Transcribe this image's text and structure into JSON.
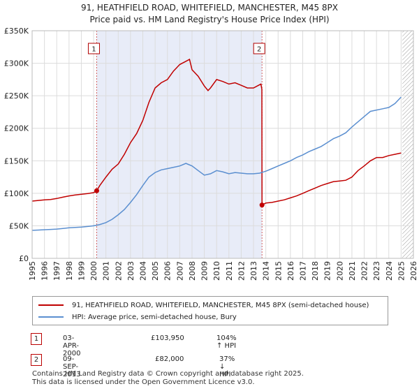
{
  "chart_data": {
    "type": "line",
    "title": "91, HEATHFIELD ROAD, WHITEFIELD, MANCHESTER, M45 8PX",
    "subtitle": "Price paid vs. HM Land Registry's House Price Index (HPI)",
    "xlim": [
      1995,
      2026
    ],
    "ylim": [
      0,
      350000
    ],
    "x_ticks": [
      "1995",
      "1996",
      "1997",
      "1998",
      "1999",
      "2000",
      "2001",
      "2002",
      "2003",
      "2004",
      "2005",
      "2006",
      "2007",
      "2008",
      "2009",
      "2010",
      "2011",
      "2012",
      "2013",
      "2014",
      "2015",
      "2016",
      "2017",
      "2018",
      "2019",
      "2020",
      "2021",
      "2022",
      "2023",
      "2024",
      "2025",
      "2026"
    ],
    "y_ticks": [
      {
        "value": 0,
        "label": "£0"
      },
      {
        "value": 50000,
        "label": "£50K"
      },
      {
        "value": 100000,
        "label": "£100K"
      },
      {
        "value": 150000,
        "label": "£150K"
      },
      {
        "value": 200000,
        "label": "£200K"
      },
      {
        "value": 250000,
        "label": "£250K"
      },
      {
        "value": 300000,
        "label": "£300K"
      },
      {
        "value": 350000,
        "label": "£350K"
      }
    ],
    "shaded_period": [
      2000.25,
      2013.69
    ],
    "forecast_from": 2025.1,
    "series": [
      {
        "name": "91, HEATHFIELD ROAD, WHITEFIELD, MANCHESTER, M45 8PX (semi-detached house)",
        "color": "#c00000",
        "x": [
          1995.0,
          1995.5,
          1996.0,
          1996.5,
          1997.0,
          1997.5,
          1998.0,
          1998.5,
          1999.0,
          1999.5,
          2000.0,
          2000.25,
          2000.5,
          2001.0,
          2001.5,
          2002.0,
          2002.5,
          2003.0,
          2003.5,
          2004.0,
          2004.5,
          2005.0,
          2005.5,
          2006.0,
          2006.5,
          2007.0,
          2007.5,
          2007.8,
          2008.0,
          2008.5,
          2009.0,
          2009.3,
          2009.5,
          2010.0,
          2010.5,
          2011.0,
          2011.5,
          2012.0,
          2012.5,
          2013.0,
          2013.3,
          2013.6,
          2013.68,
          2013.69,
          2014.0,
          2014.5,
          2015.0,
          2015.5,
          2016.0,
          2016.5,
          2017.0,
          2017.5,
          2018.0,
          2018.5,
          2019.0,
          2019.5,
          2020.0,
          2020.5,
          2021.0,
          2021.5,
          2022.0,
          2022.5,
          2023.0,
          2023.5,
          2024.0,
          2024.5,
          2025.0
        ],
        "values": [
          88000,
          89000,
          90000,
          90500,
          92000,
          94000,
          96000,
          97500,
          98500,
          99500,
          101000,
          103950,
          112000,
          125000,
          137000,
          145000,
          160000,
          178000,
          192000,
          212000,
          240000,
          262000,
          270000,
          275000,
          288000,
          298000,
          303000,
          306000,
          290000,
          280000,
          265000,
          258000,
          262000,
          275000,
          272000,
          268000,
          270000,
          266000,
          262000,
          262000,
          265000,
          268000,
          260000,
          82000,
          85000,
          86000,
          88000,
          90000,
          93000,
          96000,
          100000,
          104000,
          108000,
          112000,
          115000,
          118000,
          119000,
          120000,
          125000,
          135000,
          142000,
          150000,
          155000,
          155000,
          158000,
          160000,
          162000
        ]
      },
      {
        "name": "HPI: Average price, semi-detached house, Bury",
        "color": "#5b8fd0",
        "x": [
          1995.0,
          1995.5,
          1996.0,
          1996.5,
          1997.0,
          1997.5,
          1998.0,
          1998.5,
          1999.0,
          1999.5,
          2000.0,
          2000.5,
          2001.0,
          2001.5,
          2002.0,
          2002.5,
          2003.0,
          2003.5,
          2004.0,
          2004.5,
          2005.0,
          2005.5,
          2006.0,
          2006.5,
          2007.0,
          2007.5,
          2008.0,
          2008.5,
          2009.0,
          2009.5,
          2010.0,
          2010.5,
          2011.0,
          2011.5,
          2012.0,
          2012.5,
          2013.0,
          2013.5,
          2014.0,
          2014.5,
          2015.0,
          2015.5,
          2016.0,
          2016.5,
          2017.0,
          2017.5,
          2018.0,
          2018.5,
          2019.0,
          2019.5,
          2020.0,
          2020.5,
          2021.0,
          2021.5,
          2022.0,
          2022.5,
          2023.0,
          2023.5,
          2024.0,
          2024.5,
          2025.0
        ],
        "values": [
          43000,
          43500,
          44000,
          44500,
          45000,
          46000,
          47000,
          47500,
          48000,
          49000,
          50000,
          52000,
          55000,
          60000,
          67000,
          75000,
          86000,
          98000,
          112000,
          125000,
          132000,
          136000,
          138000,
          140000,
          142000,
          146000,
          142000,
          135000,
          128000,
          130000,
          135000,
          133000,
          130000,
          132000,
          131000,
          130000,
          130000,
          131000,
          134000,
          138000,
          142000,
          146000,
          150000,
          155000,
          159000,
          164000,
          168000,
          172000,
          178000,
          184000,
          188000,
          193000,
          202000,
          210000,
          218000,
          226000,
          228000,
          230000,
          232000,
          238000,
          248000
        ]
      }
    ],
    "annotations": [
      {
        "label": "1",
        "x": 2000.25,
        "value": 103950
      },
      {
        "label": "2",
        "x": 2013.69,
        "value": 82000
      }
    ]
  },
  "sales": [
    {
      "id": "1",
      "date": "03-APR-2000",
      "price": "£103,950",
      "hpi_diff": "104% ↑ HPI"
    },
    {
      "id": "2",
      "date": "09-SEP-2013",
      "price": "£82,000",
      "hpi_diff": "37% ↓ HPI"
    }
  ],
  "footer": {
    "line1": "Contains HM Land Registry data © Crown copyright and database right 2025.",
    "line2": "This data is licensed under the Open Government Licence v3.0."
  }
}
